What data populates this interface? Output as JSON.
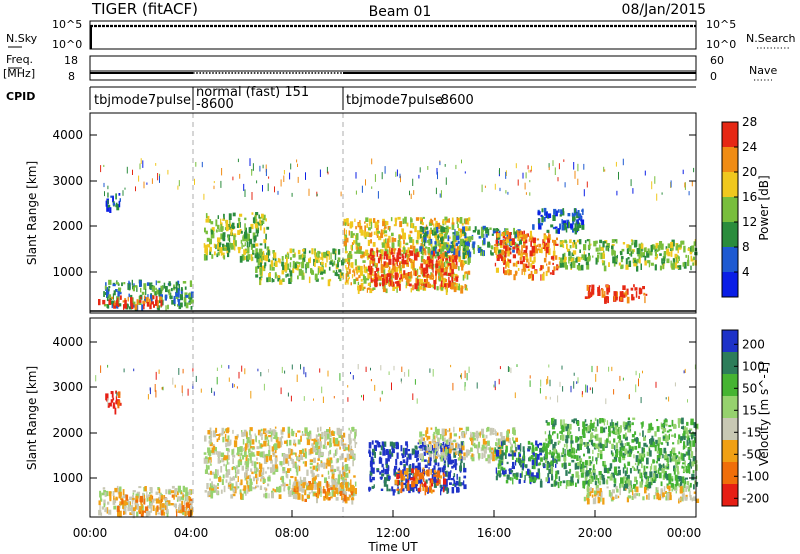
{
  "header": {
    "radar": "TIGER (fitACF)",
    "beam": "Beam 01",
    "date": "08/Jan/2015"
  },
  "strips": {
    "nsky_label": "N.Sky",
    "nsky_ticks": [
      "10^5",
      "10^0"
    ],
    "nsearch_label": "N.Search",
    "nsearch_ticks": [
      "10^5",
      "10^0"
    ],
    "freq_label": "Freq.",
    "freq_unit": "[MHz]",
    "freq_ticks": [
      "18",
      "8"
    ],
    "nave_label": "Nave",
    "nave_ticks": [
      "60",
      "0"
    ],
    "cpid_label": "CPID",
    "modes": [
      {
        "name": "tbjmode7pulse",
        "id": "-8600"
      },
      {
        "name": "normal (fast) 151",
        "id": "-8600"
      },
      {
        "name": "tbjmode7pulse",
        "id": "-8600"
      }
    ]
  },
  "chart_data": [
    {
      "type": "heatmap",
      "title": "Power",
      "xlabel": "Time UT",
      "ylabel": "Slant Range [km]",
      "x_ticks": [
        "00:00",
        "04:00",
        "08:00",
        "12:00",
        "16:00",
        "20:00",
        "00:00"
      ],
      "y_ticks": [
        "1000",
        "2000",
        "3000",
        "4000"
      ],
      "ylim": [
        200,
        4600
      ],
      "colorbar": {
        "label": "Power [dB]",
        "ticks": [
          "4",
          "8",
          "12",
          "16",
          "20",
          "24",
          "28"
        ],
        "colors": [
          "#0a1ee6",
          "#1e5ad2",
          "#2a8c3c",
          "#78be3c",
          "#f0c81e",
          "#f08c14",
          "#e62814"
        ]
      },
      "regions": [
        {
          "t0": 0.5,
          "t1": 4.0,
          "r0": 300,
          "r1": 900,
          "level": 2
        },
        {
          "t0": 0.3,
          "t1": 2.8,
          "r0": 350,
          "r1": 550,
          "level": 6
        },
        {
          "t0": 0.6,
          "t1": 1.2,
          "r0": 2500,
          "r1": 2900,
          "level": 1
        },
        {
          "t0": 4.5,
          "t1": 7.0,
          "r0": 1400,
          "r1": 2400,
          "level": 3
        },
        {
          "t0": 6.5,
          "t1": 10.0,
          "r0": 900,
          "r1": 1600,
          "level": 3
        },
        {
          "t0": 10.0,
          "t1": 15.0,
          "r0": 700,
          "r1": 2300,
          "level": 4
        },
        {
          "t0": 11.0,
          "t1": 14.5,
          "r0": 800,
          "r1": 1600,
          "level": 6
        },
        {
          "t0": 13.0,
          "t1": 17.0,
          "r0": 1500,
          "r1": 2100,
          "level": 2
        },
        {
          "t0": 16.0,
          "t1": 18.5,
          "r0": 1000,
          "r1": 2000,
          "level": 5
        },
        {
          "t0": 17.5,
          "t1": 19.5,
          "r0": 2000,
          "r1": 2500,
          "level": 1
        },
        {
          "t0": 18.5,
          "t1": 24.0,
          "r0": 1200,
          "r1": 1800,
          "level": 3
        },
        {
          "t0": 19.5,
          "t1": 22.0,
          "r0": 500,
          "r1": 800,
          "level": 6
        }
      ]
    },
    {
      "type": "heatmap",
      "title": "Velocity",
      "xlabel": "Time UT",
      "ylabel": "Slant Range [km]",
      "x_ticks": [
        "00:00",
        "04:00",
        "08:00",
        "12:00",
        "16:00",
        "20:00",
        "00:00"
      ],
      "y_ticks": [
        "1000",
        "2000",
        "3000",
        "4000"
      ],
      "ylim": [
        200,
        4600
      ],
      "colorbar": {
        "label": "Velocity [m s^-1]",
        "ticks": [
          "200",
          "100",
          "50",
          "15",
          "-15",
          "-50",
          "-100",
          "-200"
        ],
        "colors": [
          "#1e32c8",
          "#2d7d5a",
          "#46b432",
          "#96d26e",
          "#c8c8b4",
          "#f0a014",
          "#f06e0a",
          "#e61e14"
        ]
      },
      "regions": [
        {
          "t0": 0.3,
          "t1": 4.0,
          "r0": 300,
          "r1": 900,
          "level": 4
        },
        {
          "t0": 1.0,
          "t1": 4.0,
          "r0": 300,
          "r1": 700,
          "level": 5
        },
        {
          "t0": 0.6,
          "t1": 1.2,
          "r0": 2600,
          "r1": 3000,
          "level": 7
        },
        {
          "t0": 4.5,
          "t1": 10.5,
          "r0": 700,
          "r1": 2200,
          "level": 4
        },
        {
          "t0": 8.0,
          "t1": 10.5,
          "r0": 600,
          "r1": 1000,
          "level": 5
        },
        {
          "t0": 11.0,
          "t1": 14.8,
          "r0": 800,
          "r1": 1900,
          "level": 0
        },
        {
          "t0": 12.0,
          "t1": 14.0,
          "r0": 800,
          "r1": 1300,
          "level": 6
        },
        {
          "t0": 13.0,
          "t1": 17.0,
          "r0": 1500,
          "r1": 2200,
          "level": 4
        },
        {
          "t0": 16.0,
          "t1": 18.5,
          "r0": 1000,
          "r1": 1900,
          "level": 1
        },
        {
          "t0": 18.0,
          "t1": 24.0,
          "r0": 900,
          "r1": 2400,
          "level": 2
        },
        {
          "t0": 19.5,
          "t1": 24.0,
          "r0": 600,
          "r1": 900,
          "level": 4
        }
      ]
    }
  ]
}
